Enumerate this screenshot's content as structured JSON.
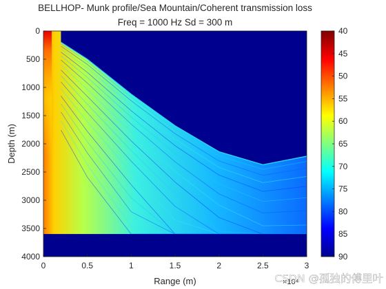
{
  "chart_data": {
    "type": "heatmap",
    "title_line1": "BELLHOP- Munk profile/Sea Mountain/Coherent transmission loss",
    "title_line2": "Freq = 1000 Hz    Sd = 300 m",
    "xlabel": "Range (m)",
    "ylabel": "Depth (m)",
    "x_exponent_label": "×10⁴",
    "xlim": [
      0,
      30000
    ],
    "ylim": [
      0,
      4000
    ],
    "y_reversed": true,
    "x_ticks": [
      0,
      0.5,
      1,
      1.5,
      2,
      2.5,
      3
    ],
    "x_tick_labels": [
      "0",
      "0.5",
      "1",
      "1.5",
      "2",
      "2.5",
      "3"
    ],
    "y_ticks": [
      0,
      500,
      1000,
      1500,
      2000,
      2500,
      3000,
      3500,
      4000
    ],
    "y_tick_labels": [
      "0",
      "500",
      "1000",
      "1500",
      "2000",
      "2500",
      "3000",
      "3500",
      "4000"
    ],
    "colorbar": {
      "colormap": "jet",
      "reversed": true,
      "range": [
        40,
        90
      ],
      "ticks": [
        40,
        45,
        50,
        55,
        60,
        65,
        70,
        75,
        80,
        85,
        90
      ],
      "tick_labels": [
        "40",
        "45",
        "50",
        "55",
        "60",
        "65",
        "70",
        "75",
        "80",
        "85",
        "90"
      ]
    },
    "bottom_flat_depth_m": 3600,
    "sea_mountain_caustic": {
      "range_m": [
        2000,
        5000,
        10000,
        15000,
        20000,
        25000,
        30000
      ],
      "depth_m": [
        200,
        500,
        1120,
        1680,
        2140,
        2370,
        2220
      ]
    },
    "grid": false,
    "legend": "none"
  },
  "watermark": "CSDN @孤独的傅里叶"
}
